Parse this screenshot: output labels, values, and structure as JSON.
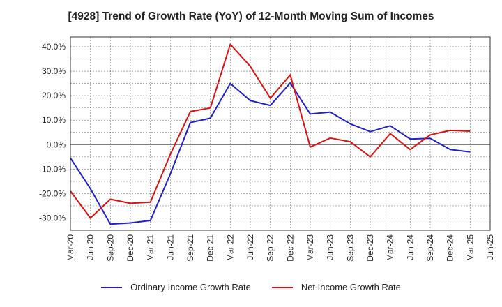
{
  "chart_data": {
    "type": "line",
    "title": "[4928]  Trend of Growth Rate (YoY) of 12-Month Moving Sum of Incomes",
    "xlabel": "",
    "ylabel": "",
    "x": [
      "Mar-20",
      "Jun-20",
      "Sep-20",
      "Dec-20",
      "Mar-21",
      "Jun-21",
      "Sep-21",
      "Dec-21",
      "Mar-22",
      "Jun-22",
      "Sep-22",
      "Dec-22",
      "Mar-23",
      "Jun-23",
      "Sep-23",
      "Dec-23",
      "Mar-24",
      "Jun-24",
      "Sep-24",
      "Dec-24",
      "Mar-25",
      "Jun-25"
    ],
    "ylim": [
      -35,
      44
    ],
    "yticks": [
      40,
      30,
      20,
      10,
      0,
      -10,
      -20,
      -30
    ],
    "ytick_labels": [
      "40.0%",
      "30.0%",
      "20.0%",
      "10.0%",
      "0.0%",
      "-10.0%",
      "-20.0%",
      "-30.0%"
    ],
    "grid": true,
    "legend_position": "bottom",
    "series": [
      {
        "name": "Ordinary Income Growth Rate",
        "color": "#1f1fd0",
        "values": [
          -5.5,
          -18.0,
          -32.5,
          -32.0,
          -31.0,
          -12.0,
          9.0,
          10.8,
          25.0,
          18.0,
          16.0,
          25.2,
          12.5,
          13.3,
          8.5,
          5.3,
          7.7,
          2.3,
          2.6,
          -2.0,
          -3.0,
          null
        ]
      },
      {
        "name": "Net Income Growth Rate",
        "color": "#dd1111",
        "values": [
          -19.0,
          -30.0,
          -22.3,
          -24.0,
          -23.5,
          -4.0,
          13.5,
          15.0,
          41.0,
          32.0,
          19.0,
          28.5,
          -1.0,
          2.7,
          1.2,
          -5.0,
          4.5,
          -2.0,
          4.0,
          5.8,
          5.5,
          null
        ]
      }
    ]
  }
}
